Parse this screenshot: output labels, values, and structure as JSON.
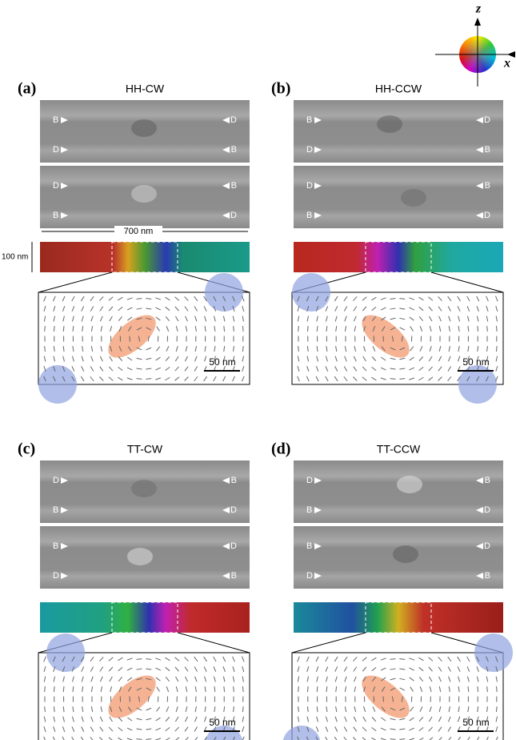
{
  "legend": {
    "z_label": "z",
    "x_label": "x"
  },
  "dimensions": {
    "length": "700 nm",
    "thickness": "100 nm"
  },
  "panels": [
    {
      "label": "(a)",
      "title": "HH-CW",
      "images": [
        {
          "left": [
            "B",
            "D"
          ],
          "right": [
            "D",
            "B"
          ]
        },
        {
          "left": [
            "D",
            "B"
          ],
          "right": [
            "B",
            "D"
          ]
        }
      ],
      "scale_bar": "50 nm"
    },
    {
      "label": "(b)",
      "title": "HH-CCW",
      "images": [
        {
          "left": [
            "B",
            "D"
          ],
          "right": [
            "D",
            "B"
          ]
        },
        {
          "left": [
            "D",
            "B"
          ],
          "right": [
            "B",
            "D"
          ]
        }
      ],
      "scale_bar": "50 nm"
    },
    {
      "label": "(c)",
      "title": "TT-CW",
      "images": [
        {
          "left": [
            "D",
            "B"
          ],
          "right": [
            "B",
            "D"
          ]
        },
        {
          "left": [
            "B",
            "D"
          ],
          "right": [
            "D",
            "B"
          ]
        }
      ],
      "scale_bar": "50 nm"
    },
    {
      "label": "(d)",
      "title": "TT-CCW",
      "images": [
        {
          "left": [
            "D",
            "B"
          ],
          "right": [
            "B",
            "D"
          ]
        },
        {
          "left": [
            "B",
            "D"
          ],
          "right": [
            "D",
            "B"
          ]
        }
      ],
      "scale_bar": "50 nm"
    }
  ]
}
